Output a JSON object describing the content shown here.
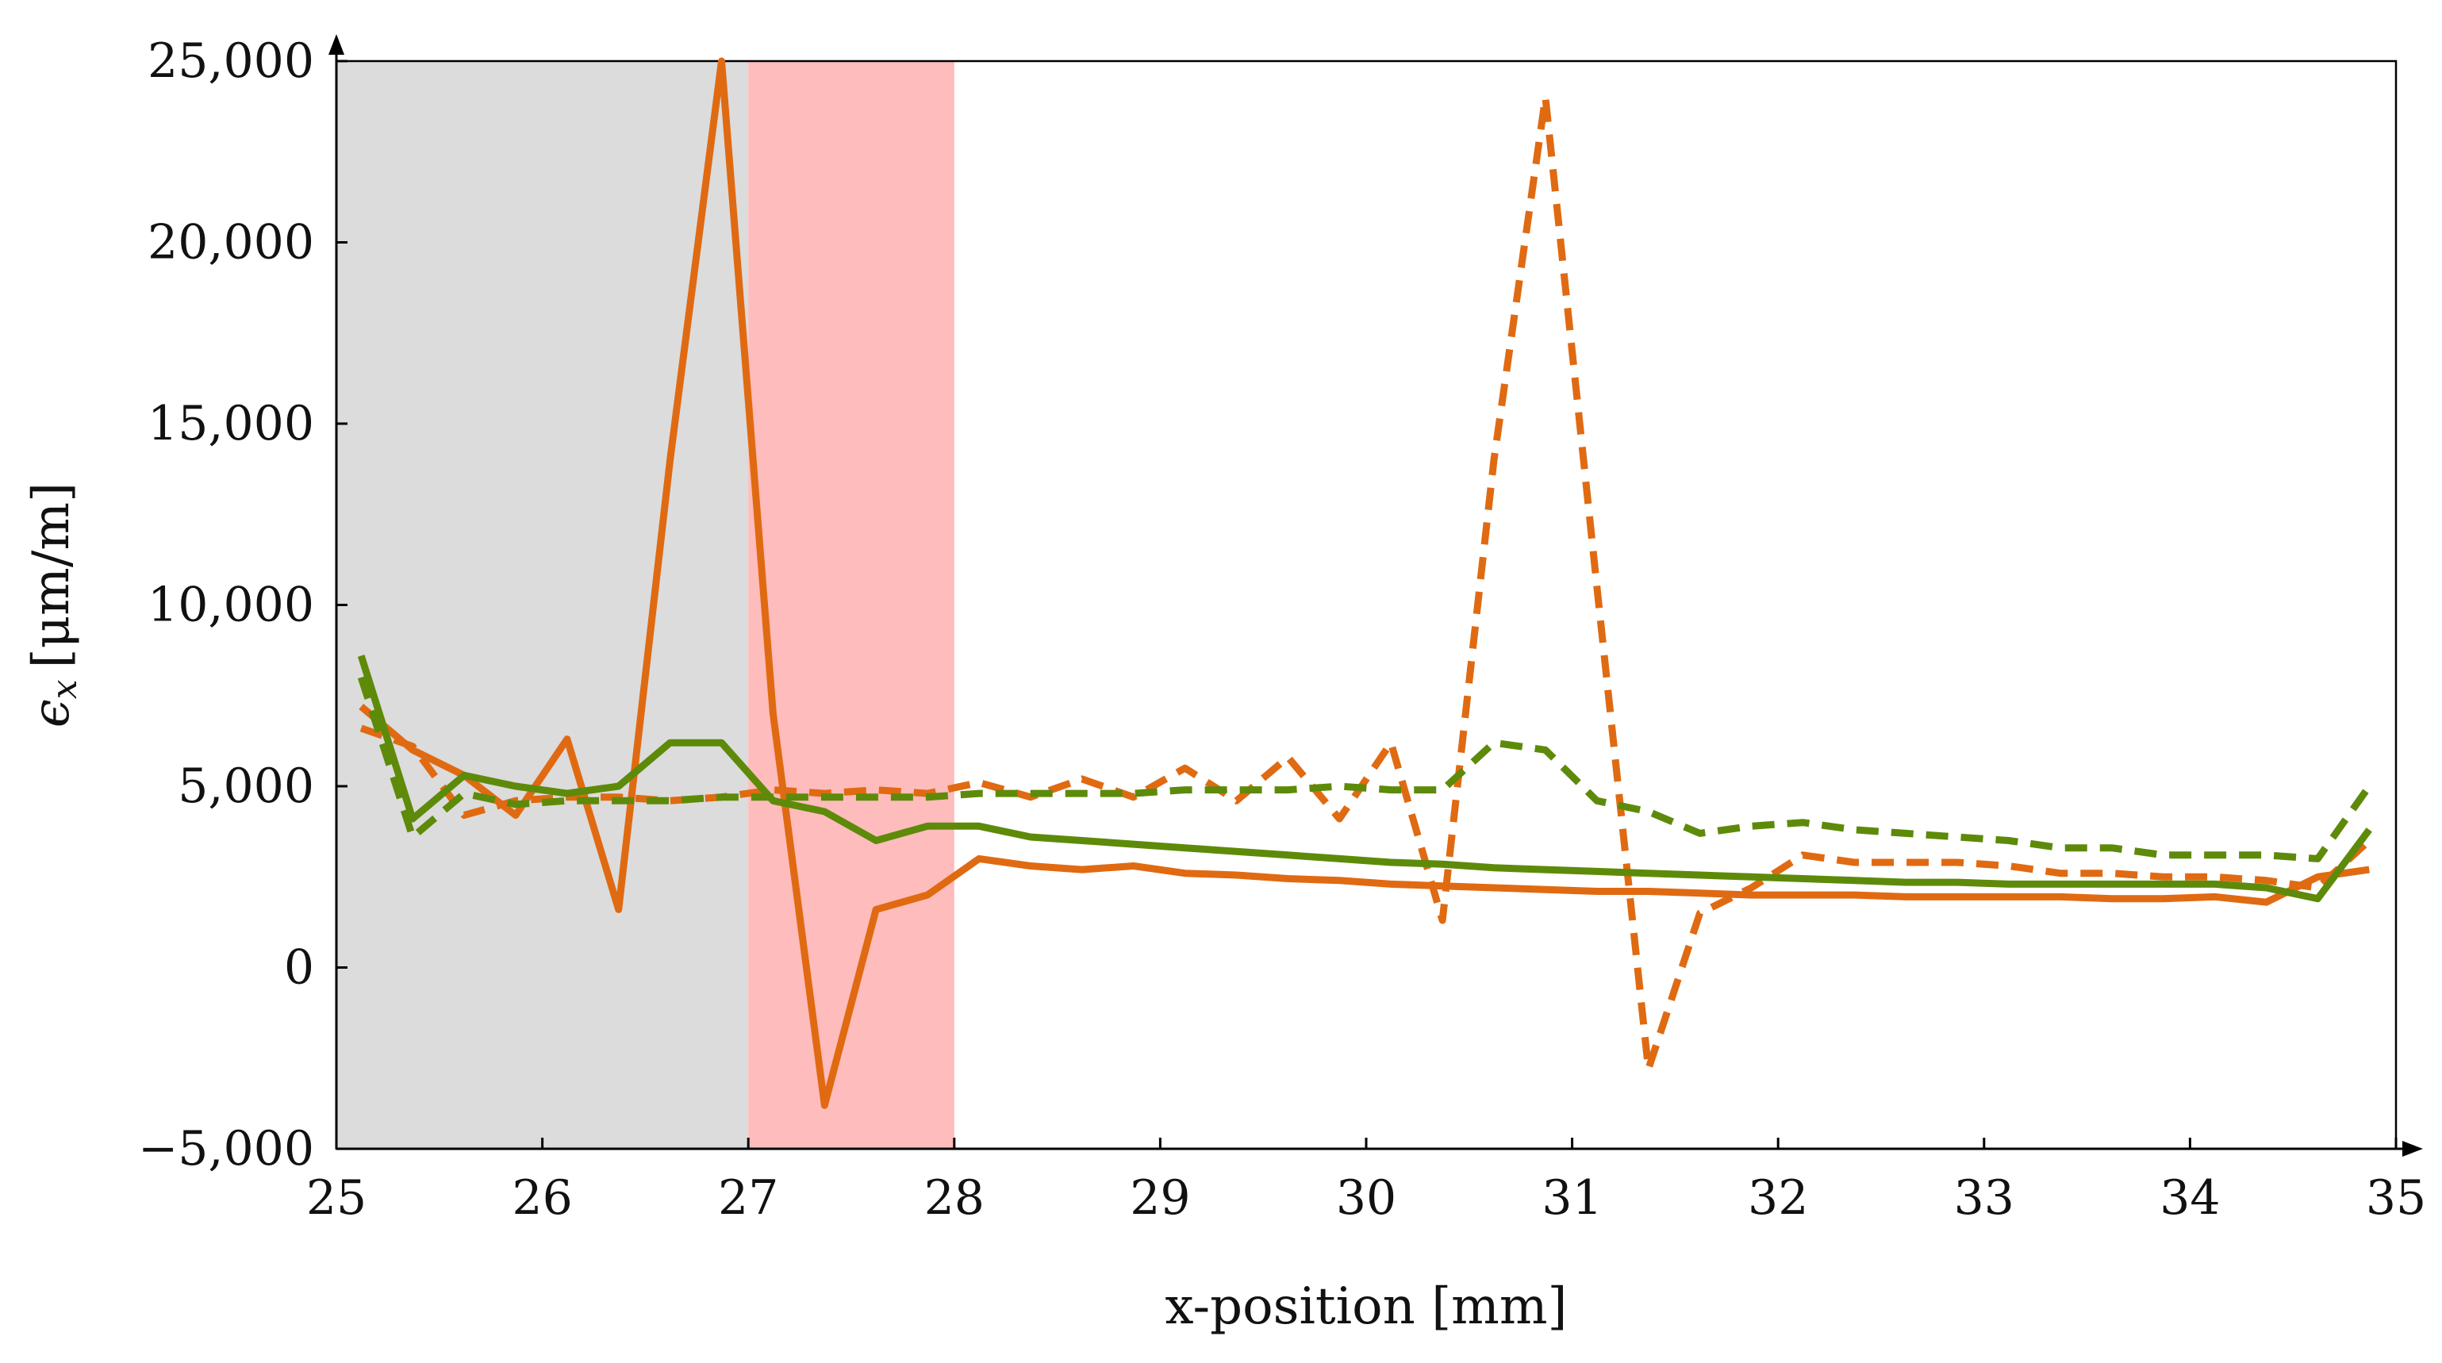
{
  "chart_data": {
    "type": "line",
    "title": "",
    "xlabel": "x-position [mm]",
    "ylabel": "ε_x [μm/m]",
    "ylabel_parts": {
      "symbol": "ϵ",
      "subscript": "x",
      "unit": "[μm/m]"
    },
    "xlim": [
      25,
      35
    ],
    "ylim": [
      -5000,
      25000
    ],
    "x_ticks": [
      25,
      26,
      27,
      28,
      29,
      30,
      31,
      32,
      33,
      34,
      35
    ],
    "x_tick_labels": [
      "25",
      "26",
      "27",
      "28",
      "29",
      "30",
      "31",
      "32",
      "33",
      "34",
      "35"
    ],
    "y_ticks": [
      -5000,
      0,
      5000,
      10000,
      15000,
      20000,
      25000
    ],
    "y_tick_labels": [
      "−5,000",
      "0",
      "5,000",
      "10,000",
      "15,000",
      "20,000",
      "25,000"
    ],
    "grid": false,
    "legend": null,
    "shaded_regions": [
      {
        "name": "region-gray",
        "x_start": 25,
        "x_end": 27,
        "color": "#dcdcdc"
      },
      {
        "name": "region-red",
        "x_start": 27,
        "x_end": 28,
        "color": "#ffbcbc"
      }
    ],
    "series": [
      {
        "name": "orange-solid",
        "color": "#e06a12",
        "dash": "solid",
        "x": [
          25.12,
          25.37,
          25.62,
          25.87,
          26.12,
          26.37,
          26.62,
          26.87,
          27.12,
          27.37,
          27.62,
          27.87,
          28.12,
          28.37,
          28.62,
          28.87,
          29.12,
          29.37,
          29.62,
          29.87,
          30.12,
          30.37,
          30.62,
          30.87,
          31.12,
          31.37,
          31.62,
          31.87,
          32.12,
          32.37,
          32.62,
          32.87,
          33.12,
          33.37,
          33.62,
          33.87,
          34.12,
          34.37,
          34.62,
          34.87
        ],
        "values": [
          7200,
          6000,
          5300,
          4200,
          6300,
          1600,
          14000,
          25000,
          7000,
          -3800,
          1600,
          2000,
          3000,
          2800,
          2700,
          2800,
          2600,
          2550,
          2450,
          2400,
          2300,
          2250,
          2200,
          2150,
          2100,
          2100,
          2050,
          2000,
          2000,
          2000,
          1950,
          1950,
          1950,
          1950,
          1900,
          1900,
          1950,
          1800,
          2500,
          2700
        ]
      },
      {
        "name": "orange-dashed",
        "color": "#e06a12",
        "dash": "dashed",
        "x": [
          25.12,
          25.37,
          25.62,
          25.87,
          26.12,
          26.37,
          26.62,
          26.87,
          27.12,
          27.37,
          27.62,
          27.87,
          28.12,
          28.37,
          28.62,
          28.87,
          29.12,
          29.37,
          29.62,
          29.87,
          30.12,
          30.37,
          30.62,
          30.87,
          31.12,
          31.37,
          31.62,
          31.87,
          32.12,
          32.37,
          32.62,
          32.87,
          33.12,
          33.37,
          33.62,
          33.87,
          34.12,
          34.37,
          34.62,
          34.87
        ],
        "values": [
          6600,
          6100,
          4200,
          4600,
          4700,
          4700,
          4600,
          4700,
          4900,
          4800,
          4900,
          4800,
          5100,
          4700,
          5200,
          4700,
          5500,
          4600,
          5800,
          4100,
          6200,
          1300,
          14000,
          24000,
          10500,
          -2800,
          1500,
          2200,
          3100,
          2900,
          2900,
          2900,
          2800,
          2600,
          2600,
          2500,
          2500,
          2400,
          2200,
          3500
        ]
      },
      {
        "name": "green-solid",
        "color": "#5e8a0a",
        "dash": "solid",
        "x": [
          25.12,
          25.37,
          25.62,
          25.87,
          26.12,
          26.37,
          26.62,
          26.87,
          27.12,
          27.37,
          27.62,
          27.87,
          28.12,
          28.37,
          28.62,
          28.87,
          29.12,
          29.37,
          29.62,
          29.87,
          30.12,
          30.37,
          30.62,
          30.87,
          31.12,
          31.37,
          31.62,
          31.87,
          32.12,
          32.37,
          32.62,
          32.87,
          33.12,
          33.37,
          33.62,
          33.87,
          34.12,
          34.37,
          34.62,
          34.87
        ],
        "values": [
          8600,
          4100,
          5300,
          5000,
          4800,
          5000,
          6200,
          6200,
          4600,
          4300,
          3500,
          3900,
          3900,
          3600,
          3500,
          3400,
          3300,
          3200,
          3100,
          3000,
          2900,
          2850,
          2750,
          2700,
          2650,
          2600,
          2550,
          2500,
          2450,
          2400,
          2350,
          2350,
          2300,
          2300,
          2300,
          2300,
          2300,
          2200,
          1900,
          3800
        ]
      },
      {
        "name": "green-dashed",
        "color": "#5e8a0a",
        "dash": "dashed",
        "x": [
          25.12,
          25.37,
          25.62,
          25.87,
          26.12,
          26.37,
          26.62,
          26.87,
          27.12,
          27.37,
          27.62,
          27.87,
          28.12,
          28.37,
          28.62,
          28.87,
          29.12,
          29.37,
          29.62,
          29.87,
          30.12,
          30.37,
          30.62,
          30.87,
          31.12,
          31.37,
          31.62,
          31.87,
          32.12,
          32.37,
          32.62,
          32.87,
          33.12,
          33.37,
          33.62,
          33.87,
          34.12,
          34.37,
          34.62,
          34.87
        ],
        "values": [
          8000,
          3600,
          4800,
          4500,
          4600,
          4600,
          4600,
          4700,
          4700,
          4700,
          4700,
          4700,
          4800,
          4800,
          4800,
          4800,
          4900,
          4900,
          4900,
          5000,
          4900,
          4900,
          6200,
          6000,
          4600,
          4300,
          3700,
          3900,
          4000,
          3800,
          3700,
          3600,
          3500,
          3300,
          3300,
          3100,
          3100,
          3100,
          3000,
          5000
        ]
      }
    ]
  }
}
